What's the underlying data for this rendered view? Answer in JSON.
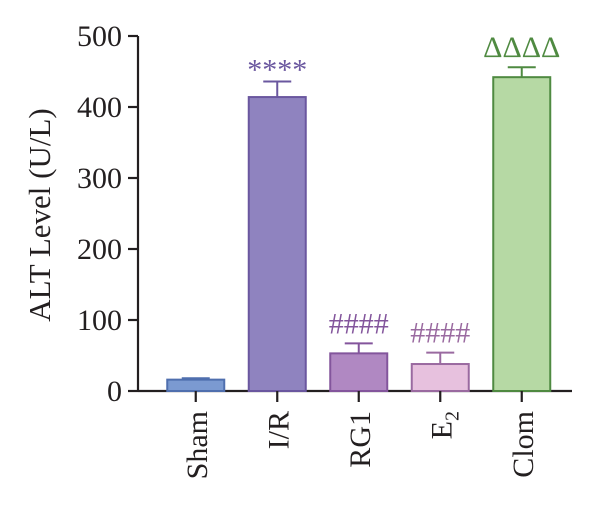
{
  "chart_data": {
    "type": "bar",
    "ylabel": "ALT Level (U/L)",
    "xlabel": "",
    "ylim": [
      0,
      500
    ],
    "yticks": [
      0,
      100,
      200,
      300,
      400,
      500
    ],
    "categories": [
      {
        "label": "Sham",
        "sub": ""
      },
      {
        "label": "I/R",
        "sub": ""
      },
      {
        "label": "RG1",
        "sub": ""
      },
      {
        "label": "E",
        "sub": "2"
      },
      {
        "label": "Clom",
        "sub": ""
      }
    ],
    "values": [
      16,
      414,
      53,
      38,
      442
    ],
    "errors": [
      2,
      22,
      14,
      16,
      14
    ],
    "annotations": [
      "",
      "****",
      "####",
      "####",
      "ΔΔΔΔ"
    ],
    "colors": {
      "fills": [
        "#7b9ad1",
        "#8f83bf",
        "#b088c2",
        "#e7c1de",
        "#b6d9a4"
      ],
      "strokes": [
        "#4f6fae",
        "#6a579f",
        "#83559c",
        "#9a6aa0",
        "#4f8a41"
      ],
      "annotation": [
        "#000000",
        "#6a579f",
        "#83559c",
        "#9a6aa0",
        "#4f8a41"
      ]
    },
    "grid": false,
    "legend": "none"
  }
}
